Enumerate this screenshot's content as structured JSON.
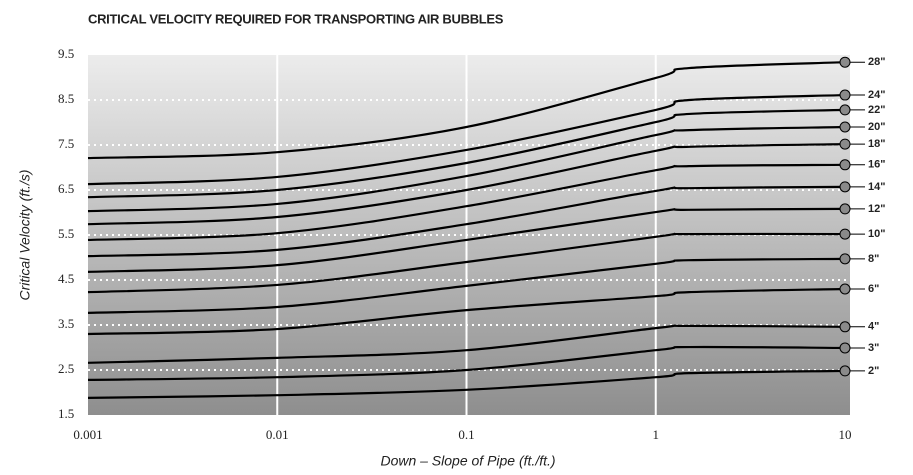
{
  "chart_data": {
    "type": "line",
    "title": "CRITICAL VELOCITY REQUIRED FOR TRANSPORTING AIR BUBBLES",
    "xlabel": "Down – Slope of Pipe (ft./ft.)",
    "ylabel": "Critical Velocity (ft./s)",
    "xscale": "log",
    "x": [
      0.001,
      0.01,
      0.1,
      1,
      1.5,
      10
    ],
    "xlim": [
      0.001,
      10
    ],
    "xticks": [
      0.001,
      0.01,
      0.1,
      1,
      10
    ],
    "ylim": [
      1.5,
      9.5
    ],
    "yticks": [
      1.5,
      2.5,
      3.5,
      4.5,
      5.5,
      6.5,
      7.5,
      8.5,
      9.5
    ],
    "grid": true,
    "series": [
      {
        "name": "28\"",
        "color": "#000000",
        "values": [
          7.21,
          7.34,
          7.9,
          8.99,
          9.21,
          9.34
        ]
      },
      {
        "name": "24\"",
        "color": "#000000",
        "values": [
          6.63,
          6.79,
          7.39,
          8.28,
          8.5,
          8.61
        ]
      },
      {
        "name": "22\"",
        "color": "#000000",
        "values": [
          6.34,
          6.5,
          7.1,
          8.01,
          8.19,
          8.28
        ]
      },
      {
        "name": "20\"",
        "color": "#000000",
        "values": [
          6.03,
          6.19,
          6.81,
          7.72,
          7.83,
          7.9
        ]
      },
      {
        "name": "18\"",
        "color": "#000000",
        "values": [
          5.74,
          5.9,
          6.5,
          7.37,
          7.46,
          7.52
        ]
      },
      {
        "name": "16\"",
        "color": "#000000",
        "values": [
          5.39,
          5.54,
          6.14,
          6.94,
          7.03,
          7.06
        ]
      },
      {
        "name": "14\"",
        "color": "#000000",
        "values": [
          5.03,
          5.17,
          5.74,
          6.48,
          6.54,
          6.57
        ]
      },
      {
        "name": "12\"",
        "color": "#000000",
        "values": [
          4.68,
          4.83,
          5.39,
          6.01,
          6.06,
          6.08
        ]
      },
      {
        "name": "10\"",
        "color": "#000000",
        "values": [
          4.23,
          4.39,
          4.9,
          5.46,
          5.52,
          5.52
        ]
      },
      {
        "name": "8\"",
        "color": "#000000",
        "values": [
          3.77,
          3.9,
          4.37,
          4.86,
          4.94,
          4.97
        ]
      },
      {
        "name": "6\"",
        "color": "#000000",
        "values": [
          3.3,
          3.41,
          3.83,
          4.14,
          4.23,
          4.3
        ]
      },
      {
        "name": "4\"",
        "color": "#000000",
        "values": [
          2.66,
          2.77,
          2.94,
          3.43,
          3.48,
          3.46
        ]
      },
      {
        "name": "3\"",
        "color": "#000000",
        "values": [
          2.28,
          2.34,
          2.5,
          2.94,
          3.01,
          2.99
        ]
      },
      {
        "name": "2\"",
        "color": "#000000",
        "values": [
          1.88,
          1.94,
          2.06,
          2.34,
          2.43,
          2.48
        ]
      }
    ]
  }
}
